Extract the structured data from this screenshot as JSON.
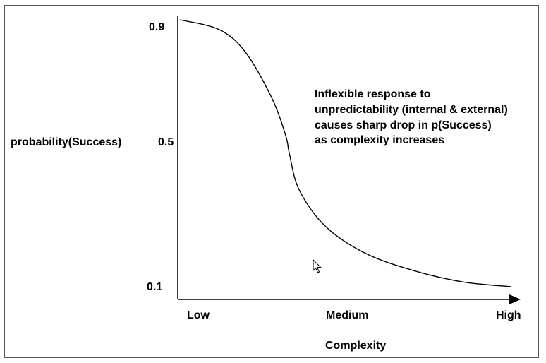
{
  "chart_data": {
    "type": "line",
    "ylabel": "probability(Success)",
    "xlabel": "Complexity",
    "y_ticks": [
      "0.9",
      "0.5",
      "0.1"
    ],
    "x_categories": [
      "Low",
      "Medium",
      "High"
    ],
    "annotation": [
      "Inflexible response to",
      "unpredictability (internal & external)",
      "causes sharp drop in p(Success)",
      "as complexity increases"
    ],
    "ylim": [
      0.1,
      0.9
    ],
    "series": [
      {
        "x": [
          0.0,
          0.12,
          0.2,
          0.28,
          0.32,
          0.33,
          0.36,
          0.44,
          0.56,
          0.7,
          0.85,
          1.0
        ],
        "y": [
          0.9,
          0.87,
          0.8,
          0.66,
          0.55,
          0.5,
          0.39,
          0.28,
          0.2,
          0.15,
          0.115,
          0.1
        ]
      }
    ],
    "grid": false
  },
  "colors": {
    "line": "#000000",
    "frame": "#555555"
  },
  "icons": {
    "cursor": "mouse-cursor-icon"
  }
}
